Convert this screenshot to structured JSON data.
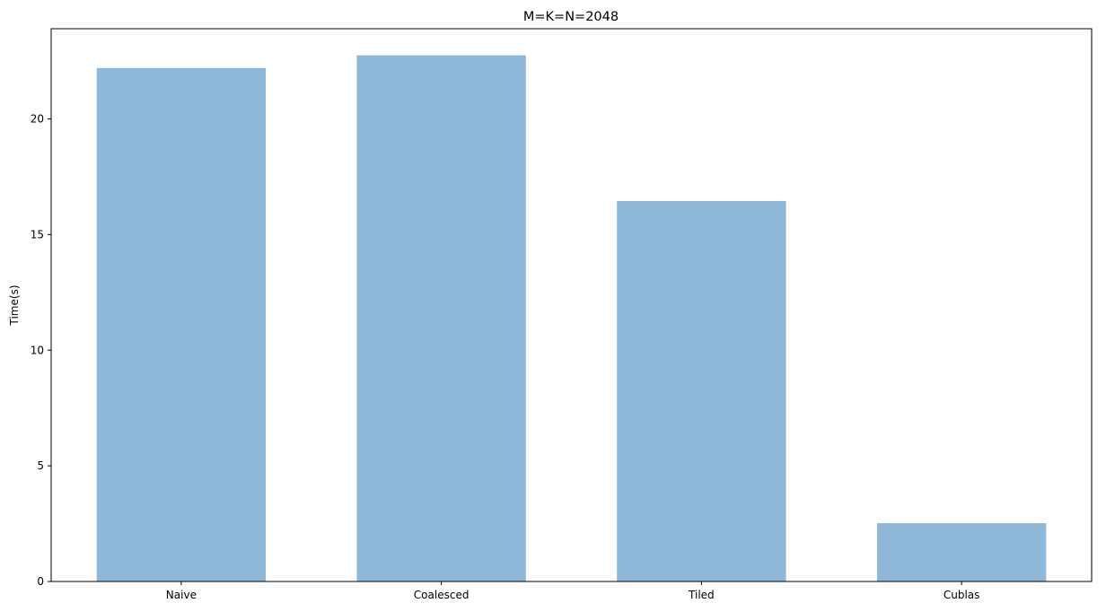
{
  "chart_data": {
    "type": "bar",
    "title": "M=K=N=2048",
    "xlabel": "",
    "ylabel": "Time(s)",
    "categories": [
      "Naive",
      "Coalesced",
      "Tiled",
      "Cublas"
    ],
    "values": [
      22.2,
      22.75,
      16.45,
      2.52
    ],
    "ylim": [
      0,
      23.9
    ],
    "yticks": [
      0,
      5,
      10,
      15,
      20
    ],
    "bar_color": "#8fb8d8",
    "grid": false,
    "legend": "none"
  }
}
